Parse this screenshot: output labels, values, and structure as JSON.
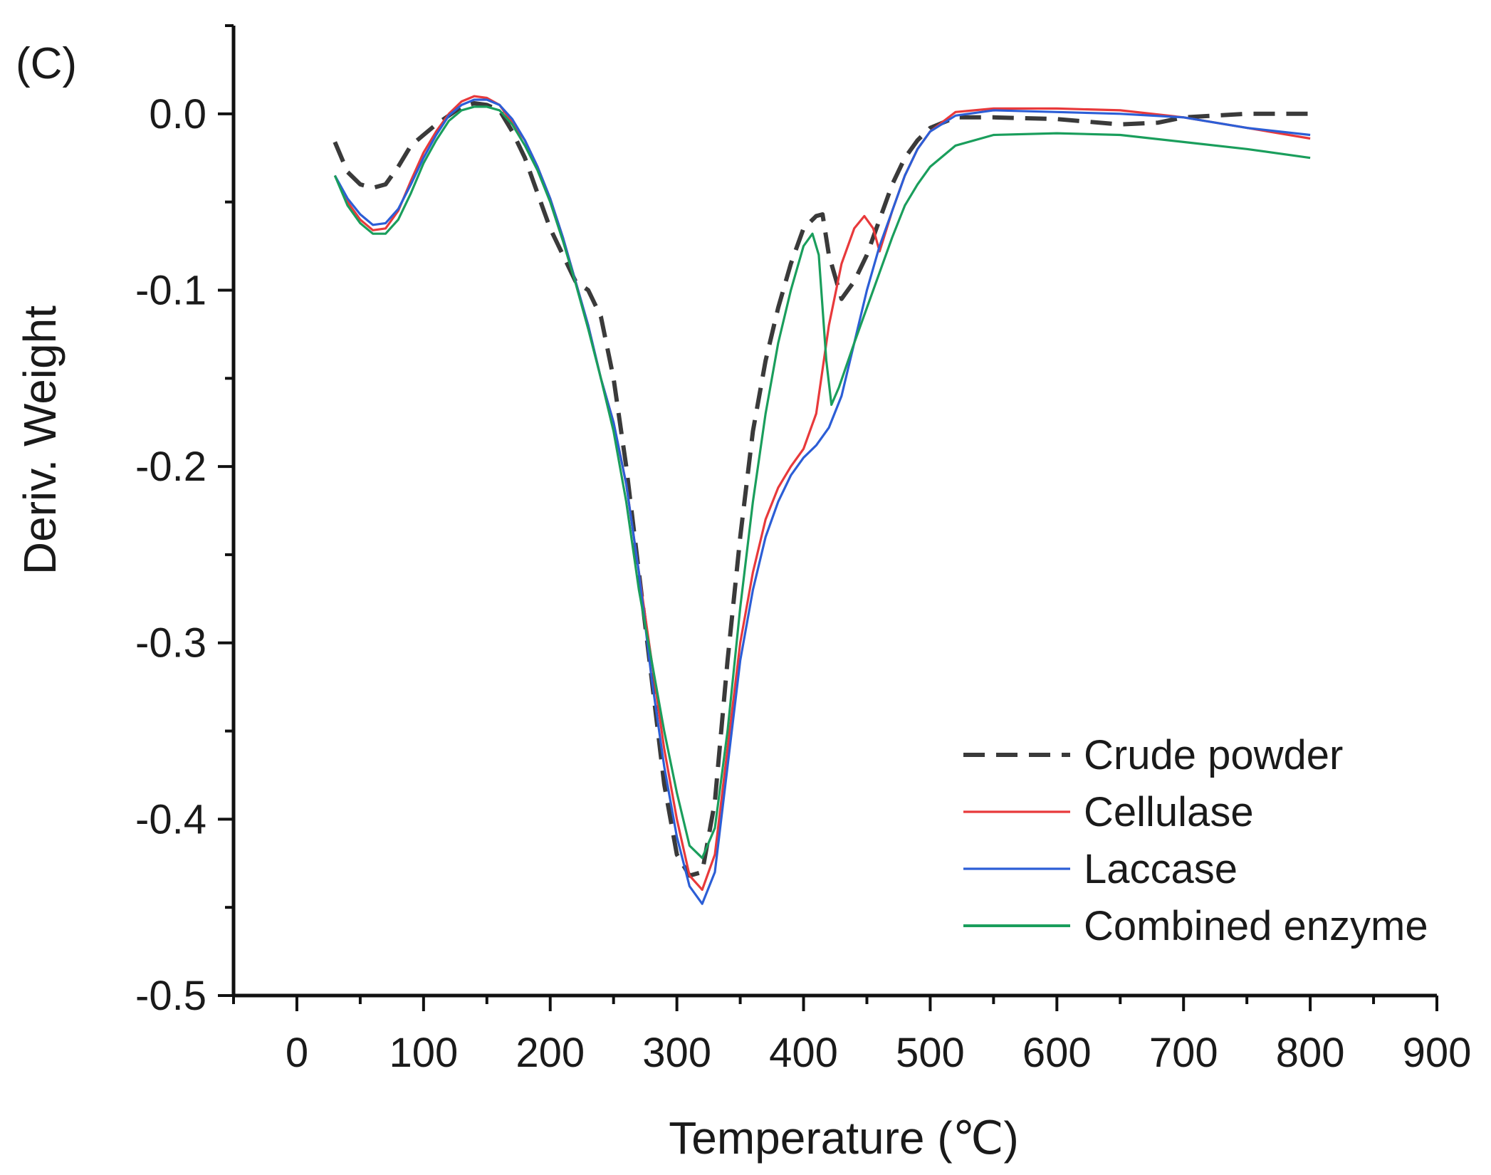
{
  "chart_data": {
    "type": "line",
    "panel_label": "(C)",
    "title": "",
    "xlabel": "Temperature (℃)",
    "ylabel": "Deriv. Weight",
    "xlim": [
      -50,
      900
    ],
    "ylim": [
      -0.5,
      0.05
    ],
    "x_ticks": [
      0,
      100,
      200,
      300,
      400,
      500,
      600,
      700,
      800,
      900
    ],
    "x_tick_labels": [
      "0",
      "100",
      "200",
      "300",
      "400",
      "500",
      "600",
      "700",
      "800",
      "900"
    ],
    "y_ticks": [
      0.0,
      -0.1,
      -0.2,
      -0.3,
      -0.4,
      -0.5
    ],
    "y_tick_labels": [
      "0.0",
      "-0.1",
      "-0.2",
      "-0.3",
      "-0.4",
      "-0.5"
    ],
    "grid": false,
    "legend_position": "bottom-right",
    "series": [
      {
        "name": "Crude powder",
        "color": "#3a3a3a",
        "dashed": true,
        "points": [
          [
            30,
            -0.016
          ],
          [
            40,
            -0.033
          ],
          [
            50,
            -0.04
          ],
          [
            60,
            -0.042
          ],
          [
            70,
            -0.04
          ],
          [
            80,
            -0.03
          ],
          [
            90,
            -0.018
          ],
          [
            100,
            -0.012
          ],
          [
            110,
            -0.006
          ],
          [
            120,
            -0.001
          ],
          [
            130,
            0.004
          ],
          [
            140,
            0.006
          ],
          [
            150,
            0.005
          ],
          [
            160,
            0.002
          ],
          [
            170,
            -0.01
          ],
          [
            180,
            -0.025
          ],
          [
            190,
            -0.045
          ],
          [
            200,
            -0.065
          ],
          [
            210,
            -0.08
          ],
          [
            220,
            -0.095
          ],
          [
            230,
            -0.1
          ],
          [
            240,
            -0.115
          ],
          [
            250,
            -0.15
          ],
          [
            260,
            -0.2
          ],
          [
            270,
            -0.26
          ],
          [
            280,
            -0.32
          ],
          [
            290,
            -0.38
          ],
          [
            300,
            -0.42
          ],
          [
            310,
            -0.432
          ],
          [
            320,
            -0.43
          ],
          [
            330,
            -0.39
          ],
          [
            340,
            -0.31
          ],
          [
            350,
            -0.24
          ],
          [
            360,
            -0.18
          ],
          [
            370,
            -0.14
          ],
          [
            380,
            -0.11
          ],
          [
            390,
            -0.085
          ],
          [
            400,
            -0.065
          ],
          [
            410,
            -0.058
          ],
          [
            415,
            -0.057
          ],
          [
            420,
            -0.08
          ],
          [
            430,
            -0.105
          ],
          [
            440,
            -0.095
          ],
          [
            450,
            -0.08
          ],
          [
            460,
            -0.06
          ],
          [
            470,
            -0.04
          ],
          [
            480,
            -0.025
          ],
          [
            490,
            -0.015
          ],
          [
            500,
            -0.008
          ],
          [
            520,
            -0.002
          ],
          [
            550,
            -0.002
          ],
          [
            600,
            -0.003
          ],
          [
            650,
            -0.006
          ],
          [
            680,
            -0.005
          ],
          [
            700,
            -0.002
          ],
          [
            750,
            0.0
          ],
          [
            800,
            0.0
          ]
        ]
      },
      {
        "name": "Cellulase",
        "color": "#e8393b",
        "dashed": false,
        "points": [
          [
            30,
            -0.035
          ],
          [
            40,
            -0.05
          ],
          [
            50,
            -0.06
          ],
          [
            60,
            -0.066
          ],
          [
            70,
            -0.065
          ],
          [
            80,
            -0.055
          ],
          [
            90,
            -0.038
          ],
          [
            100,
            -0.022
          ],
          [
            110,
            -0.01
          ],
          [
            120,
            0.0
          ],
          [
            130,
            0.007
          ],
          [
            140,
            0.01
          ],
          [
            150,
            0.009
          ],
          [
            160,
            0.005
          ],
          [
            170,
            -0.005
          ],
          [
            180,
            -0.015
          ],
          [
            190,
            -0.03
          ],
          [
            200,
            -0.048
          ],
          [
            210,
            -0.07
          ],
          [
            220,
            -0.095
          ],
          [
            230,
            -0.12
          ],
          [
            240,
            -0.15
          ],
          [
            250,
            -0.175
          ],
          [
            260,
            -0.21
          ],
          [
            270,
            -0.26
          ],
          [
            280,
            -0.31
          ],
          [
            290,
            -0.36
          ],
          [
            300,
            -0.4
          ],
          [
            310,
            -0.432
          ],
          [
            320,
            -0.44
          ],
          [
            330,
            -0.42
          ],
          [
            340,
            -0.36
          ],
          [
            350,
            -0.3
          ],
          [
            360,
            -0.26
          ],
          [
            370,
            -0.23
          ],
          [
            380,
            -0.212
          ],
          [
            390,
            -0.2
          ],
          [
            400,
            -0.19
          ],
          [
            410,
            -0.17
          ],
          [
            420,
            -0.12
          ],
          [
            430,
            -0.085
          ],
          [
            440,
            -0.065
          ],
          [
            448,
            -0.058
          ],
          [
            455,
            -0.065
          ],
          [
            460,
            -0.078
          ],
          [
            470,
            -0.055
          ],
          [
            480,
            -0.035
          ],
          [
            490,
            -0.02
          ],
          [
            500,
            -0.01
          ],
          [
            520,
            0.001
          ],
          [
            550,
            0.003
          ],
          [
            600,
            0.003
          ],
          [
            650,
            0.002
          ],
          [
            700,
            -0.002
          ],
          [
            750,
            -0.008
          ],
          [
            800,
            -0.014
          ]
        ]
      },
      {
        "name": "Laccase",
        "color": "#2c5ed6",
        "dashed": false,
        "points": [
          [
            30,
            -0.035
          ],
          [
            40,
            -0.048
          ],
          [
            50,
            -0.057
          ],
          [
            60,
            -0.063
          ],
          [
            70,
            -0.062
          ],
          [
            80,
            -0.054
          ],
          [
            90,
            -0.04
          ],
          [
            100,
            -0.025
          ],
          [
            110,
            -0.012
          ],
          [
            120,
            -0.001
          ],
          [
            130,
            0.005
          ],
          [
            140,
            0.008
          ],
          [
            150,
            0.008
          ],
          [
            160,
            0.005
          ],
          [
            170,
            -0.003
          ],
          [
            180,
            -0.015
          ],
          [
            190,
            -0.03
          ],
          [
            200,
            -0.048
          ],
          [
            210,
            -0.07
          ],
          [
            220,
            -0.095
          ],
          [
            230,
            -0.12
          ],
          [
            240,
            -0.15
          ],
          [
            250,
            -0.175
          ],
          [
            260,
            -0.21
          ],
          [
            270,
            -0.26
          ],
          [
            280,
            -0.32
          ],
          [
            290,
            -0.37
          ],
          [
            300,
            -0.41
          ],
          [
            310,
            -0.438
          ],
          [
            320,
            -0.448
          ],
          [
            330,
            -0.43
          ],
          [
            340,
            -0.37
          ],
          [
            350,
            -0.31
          ],
          [
            360,
            -0.27
          ],
          [
            370,
            -0.24
          ],
          [
            380,
            -0.22
          ],
          [
            390,
            -0.205
          ],
          [
            400,
            -0.195
          ],
          [
            410,
            -0.188
          ],
          [
            420,
            -0.178
          ],
          [
            430,
            -0.16
          ],
          [
            440,
            -0.13
          ],
          [
            450,
            -0.1
          ],
          [
            460,
            -0.075
          ],
          [
            470,
            -0.055
          ],
          [
            480,
            -0.035
          ],
          [
            490,
            -0.02
          ],
          [
            500,
            -0.01
          ],
          [
            520,
            -0.001
          ],
          [
            550,
            0.002
          ],
          [
            600,
            0.001
          ],
          [
            650,
            0.0
          ],
          [
            700,
            -0.002
          ],
          [
            750,
            -0.008
          ],
          [
            800,
            -0.012
          ]
        ]
      },
      {
        "name": "Combined enzyme",
        "color": "#1a9e5c",
        "dashed": false,
        "points": [
          [
            30,
            -0.035
          ],
          [
            40,
            -0.052
          ],
          [
            50,
            -0.062
          ],
          [
            60,
            -0.068
          ],
          [
            70,
            -0.068
          ],
          [
            80,
            -0.06
          ],
          [
            90,
            -0.045
          ],
          [
            100,
            -0.028
          ],
          [
            110,
            -0.015
          ],
          [
            120,
            -0.004
          ],
          [
            130,
            0.002
          ],
          [
            140,
            0.004
          ],
          [
            150,
            0.004
          ],
          [
            160,
            0.002
          ],
          [
            170,
            -0.006
          ],
          [
            180,
            -0.018
          ],
          [
            190,
            -0.032
          ],
          [
            200,
            -0.05
          ],
          [
            210,
            -0.072
          ],
          [
            220,
            -0.096
          ],
          [
            230,
            -0.122
          ],
          [
            240,
            -0.15
          ],
          [
            250,
            -0.18
          ],
          [
            260,
            -0.22
          ],
          [
            270,
            -0.27
          ],
          [
            280,
            -0.31
          ],
          [
            290,
            -0.35
          ],
          [
            300,
            -0.385
          ],
          [
            310,
            -0.415
          ],
          [
            320,
            -0.422
          ],
          [
            330,
            -0.405
          ],
          [
            340,
            -0.35
          ],
          [
            350,
            -0.28
          ],
          [
            360,
            -0.22
          ],
          [
            370,
            -0.17
          ],
          [
            380,
            -0.13
          ],
          [
            390,
            -0.1
          ],
          [
            400,
            -0.075
          ],
          [
            407,
            -0.068
          ],
          [
            412,
            -0.08
          ],
          [
            418,
            -0.14
          ],
          [
            422,
            -0.165
          ],
          [
            428,
            -0.155
          ],
          [
            440,
            -0.13
          ],
          [
            450,
            -0.11
          ],
          [
            460,
            -0.09
          ],
          [
            470,
            -0.07
          ],
          [
            480,
            -0.052
          ],
          [
            490,
            -0.04
          ],
          [
            500,
            -0.03
          ],
          [
            520,
            -0.018
          ],
          [
            550,
            -0.012
          ],
          [
            600,
            -0.011
          ],
          [
            650,
            -0.012
          ],
          [
            700,
            -0.016
          ],
          [
            750,
            -0.02
          ],
          [
            800,
            -0.025
          ]
        ]
      }
    ]
  }
}
